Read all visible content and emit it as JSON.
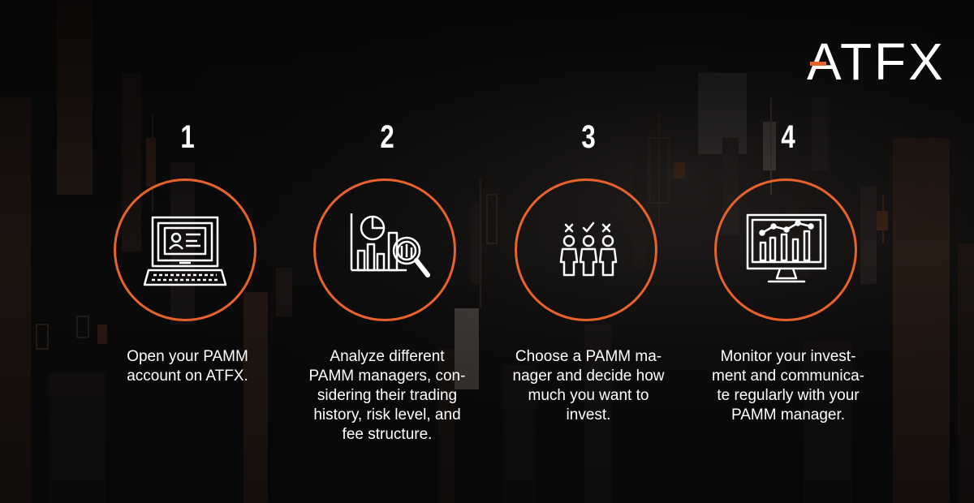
{
  "brand": {
    "logo_text": "ATFX",
    "accent_color": "#e8622c"
  },
  "steps": [
    {
      "number": "1",
      "icon": "laptop-profile-icon",
      "lines": [
        "Open your PAMM",
        "account on ATFX."
      ]
    },
    {
      "number": "2",
      "icon": "analytics-magnifier-icon",
      "lines": [
        "Analyze different",
        "PAMM managers, con-",
        "sidering their trading",
        "history, risk level, and",
        "fee structure."
      ]
    },
    {
      "number": "3",
      "icon": "people-selection-icon",
      "lines": [
        "Choose a PAMM ma-",
        "nager and decide how",
        "much you want to",
        "invest."
      ]
    },
    {
      "number": "4",
      "icon": "monitor-chart-icon",
      "lines": [
        "Monitor your invest-",
        "ment and communica-",
        "te regularly with your",
        "PAMM manager."
      ]
    }
  ],
  "colors": {
    "background": "#0a0909",
    "text": "#ffffff",
    "circle_border": "#e8622c"
  }
}
